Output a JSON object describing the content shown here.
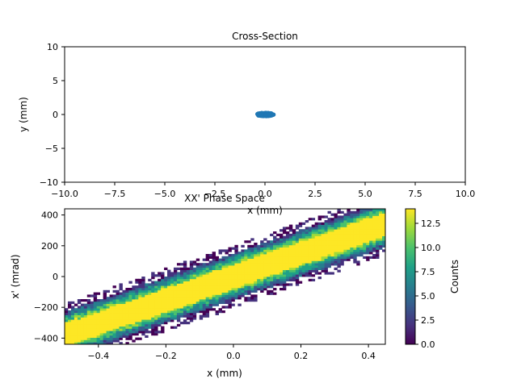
{
  "chart_data": [
    {
      "type": "scatter",
      "title": "Cross-Section",
      "xlabel": "x (mm)",
      "ylabel": "y (mm)",
      "xlim": [
        -10,
        10
      ],
      "ylim": [
        -10,
        10
      ],
      "xticks": [
        -10.0,
        -7.5,
        -5.0,
        -2.5,
        0.0,
        2.5,
        5.0,
        7.5,
        10.0
      ],
      "xtick_labels": [
        "−10.0",
        "−7.5",
        "−5.0",
        "−2.5",
        "0.0",
        "2.5",
        "5.0",
        "7.5",
        "10.0"
      ],
      "yticks": [
        10,
        5,
        0,
        -5,
        -10
      ],
      "ytick_labels": [
        "10",
        "5",
        "0",
        "−5",
        "−10"
      ],
      "grid": false,
      "marker_color": "#1f77b4",
      "cluster": {
        "x_center": 0.0,
        "y_center": 0.0,
        "x_halfwidth": 0.45,
        "y_halfwidth": 0.3
      }
    },
    {
      "type": "heatmap",
      "title": "XX' Phase Space",
      "xlabel": "x (mm)",
      "ylabel": "x' (mrad)",
      "xlim": [
        -0.5,
        0.45
      ],
      "ylim": [
        -440,
        440
      ],
      "xticks": [
        -0.4,
        -0.2,
        0.0,
        0.2,
        0.4
      ],
      "xtick_labels": [
        "−0.4",
        "−0.2",
        "0.0",
        "0.2",
        "0.4"
      ],
      "yticks": [
        400,
        200,
        0,
        -200,
        -400
      ],
      "ytick_labels": [
        "400",
        "200",
        "0",
        "−200",
        "−400"
      ],
      "colormap": "viridis",
      "colorbar": {
        "label": "Counts",
        "range": [
          0,
          14
        ],
        "ticks": [
          12.5,
          10.0,
          7.5,
          5.0,
          2.5,
          0.0
        ],
        "tick_labels": [
          "12.5",
          "10.0",
          "7.5",
          "5.0",
          "2.5",
          "0.0"
        ]
      },
      "distribution": {
        "slope_mrad_per_mm": 760,
        "core_halfwidth_mm": 0.1,
        "halo_halfwidth_mm": 0.2
      }
    }
  ]
}
